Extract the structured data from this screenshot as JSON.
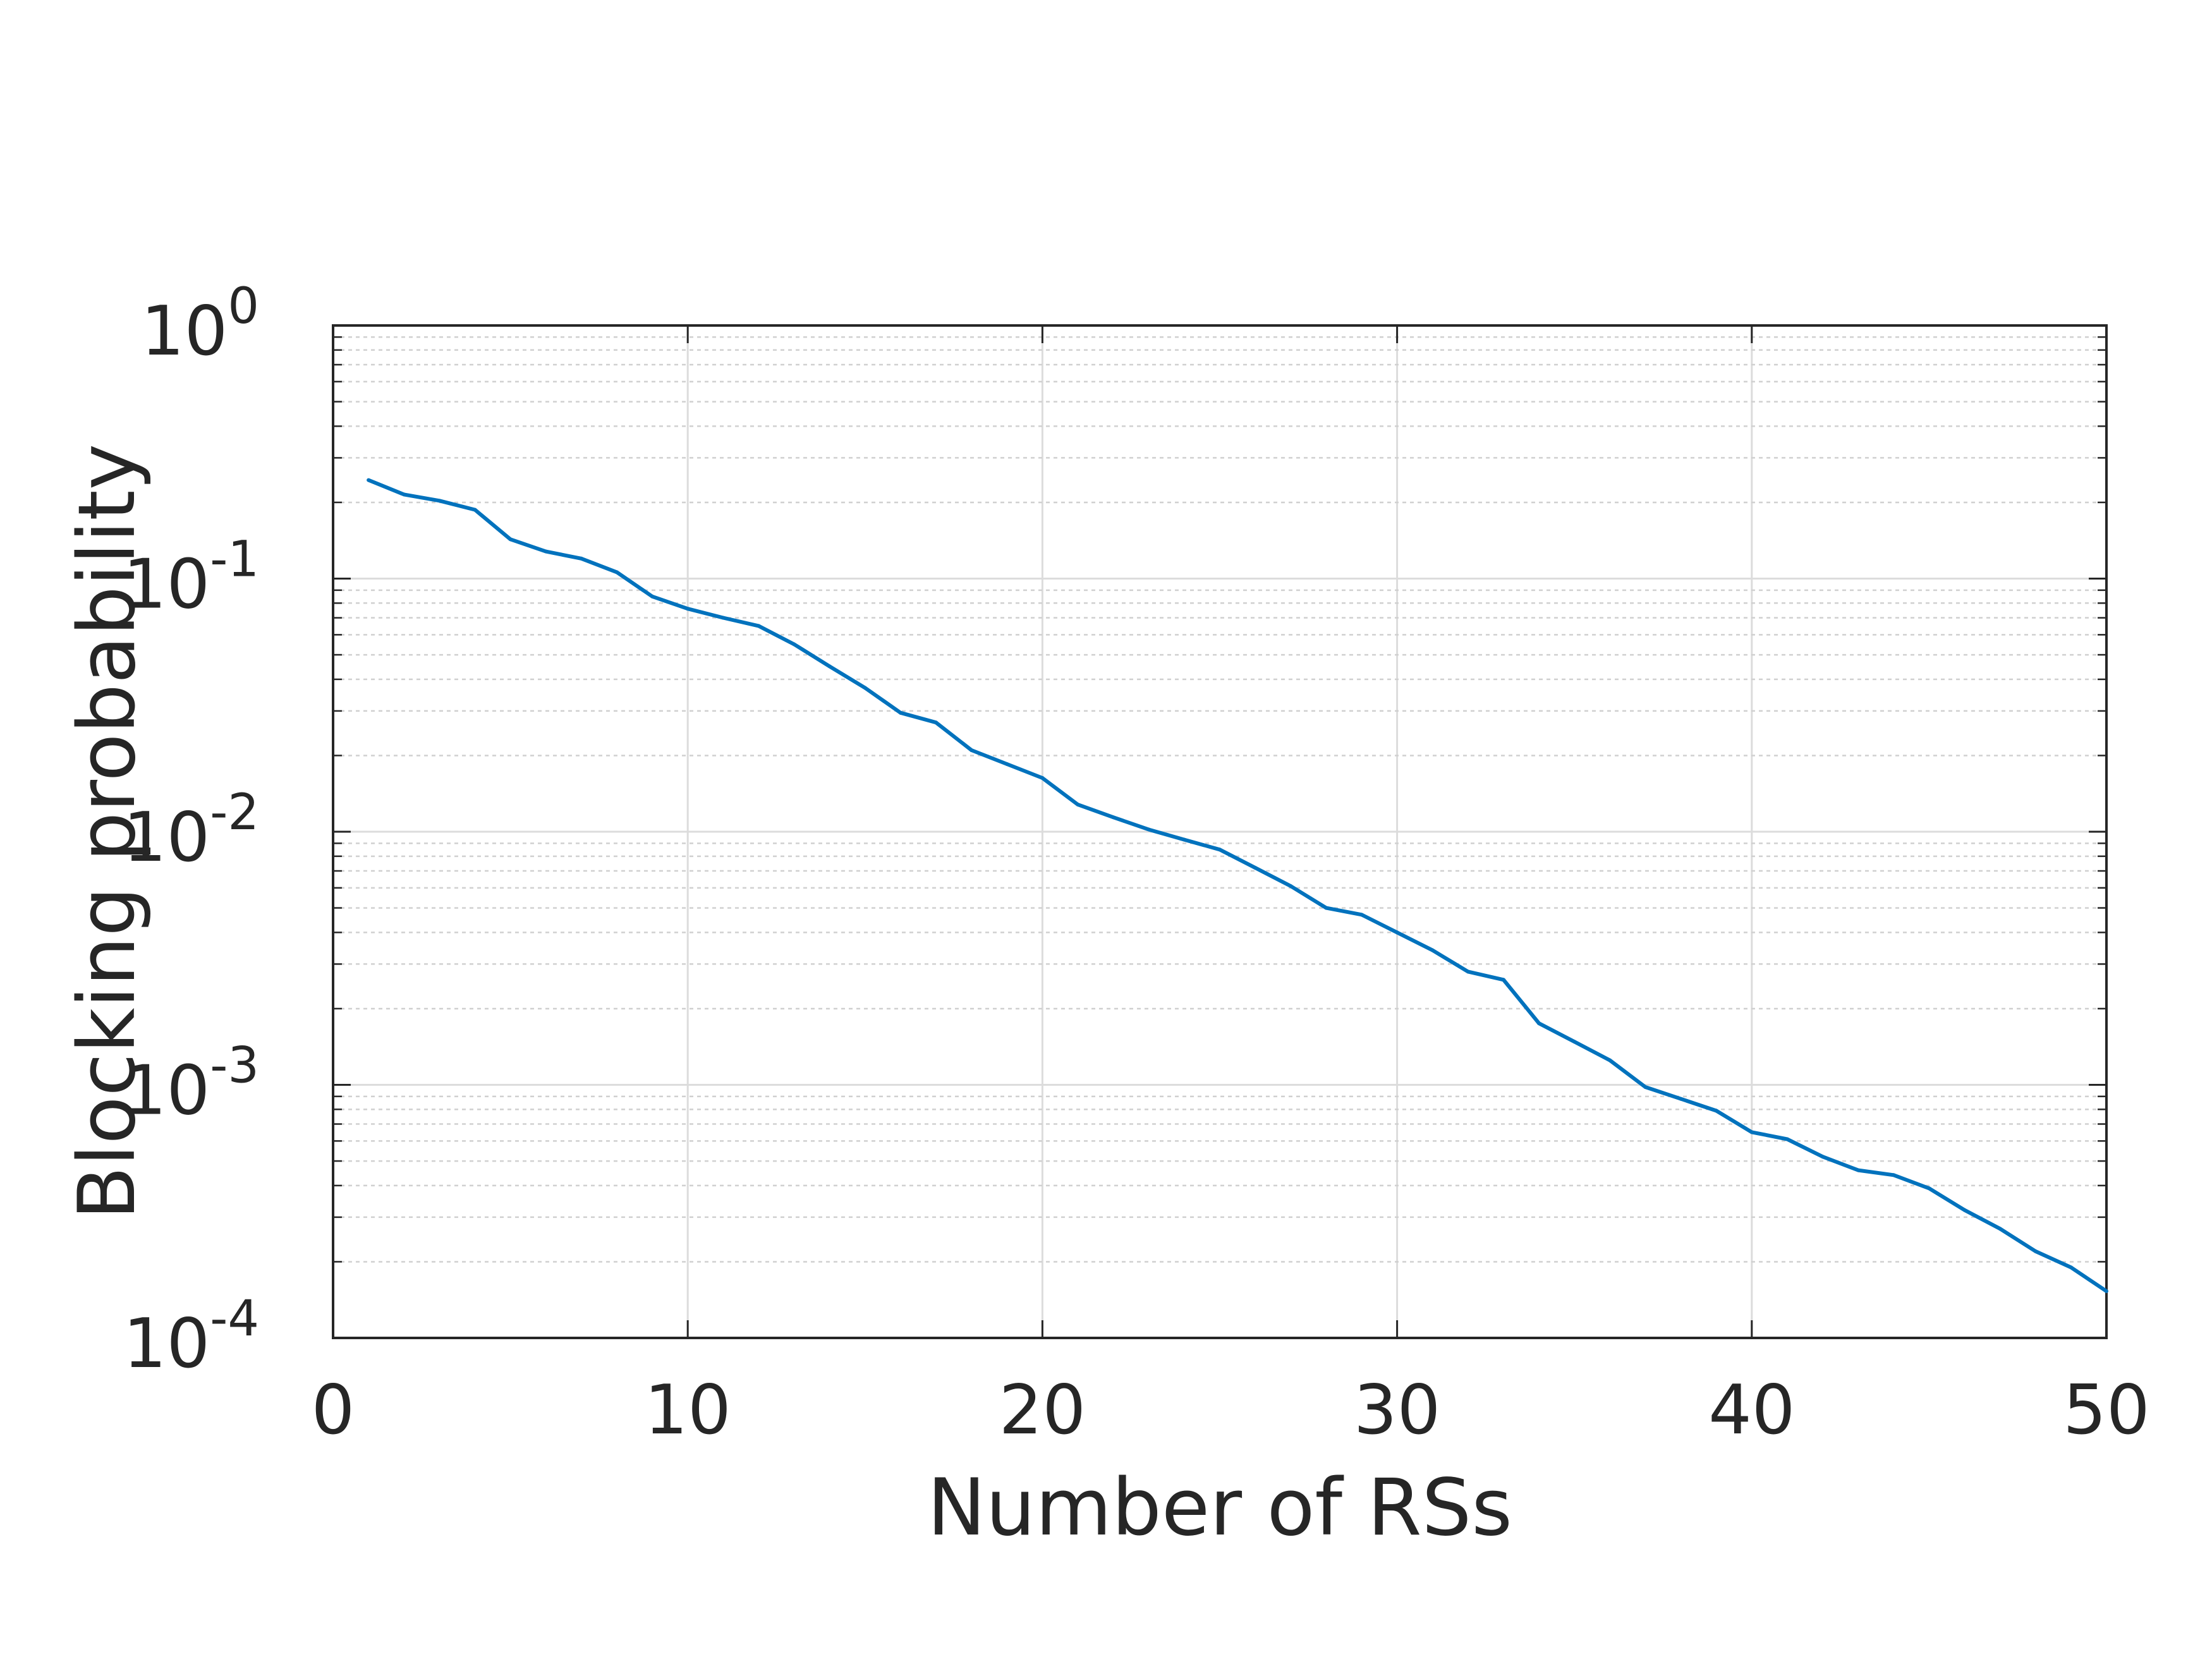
{
  "chart_data": {
    "type": "line",
    "title": "",
    "xlabel": "Number of RSs",
    "ylabel": "Blocking probability",
    "xlim": [
      0,
      50
    ],
    "ylim": [
      0.0001,
      1
    ],
    "yscale": "log",
    "grid": true,
    "x_ticks": [
      0,
      10,
      20,
      30,
      40,
      50
    ],
    "x_tick_labels": [
      "0",
      "10",
      "20",
      "30",
      "40",
      "50"
    ],
    "y_ticks": [
      1,
      0.1,
      0.01,
      0.001,
      0.0001
    ],
    "y_tick_labels": [
      {
        "base": "10",
        "exp": "0"
      },
      {
        "base": "10",
        "exp": "-1"
      },
      {
        "base": "10",
        "exp": "-2"
      },
      {
        "base": "10",
        "exp": "-3"
      },
      {
        "base": "10",
        "exp": "-4"
      }
    ],
    "series": [
      {
        "color": "#0072BD",
        "x": [
          1,
          2,
          3,
          4,
          5,
          6,
          7,
          8,
          9,
          10,
          11,
          12,
          13,
          14,
          15,
          16,
          17,
          18,
          19,
          20,
          21,
          22,
          23,
          24,
          25,
          26,
          27,
          28,
          29,
          30,
          31,
          32,
          33,
          34,
          35,
          36,
          37,
          38,
          39,
          40,
          41,
          42,
          43,
          44,
          45,
          46,
          47,
          48,
          49,
          50
        ],
        "y": [
          0.245,
          0.215,
          0.203,
          0.187,
          0.143,
          0.128,
          0.12,
          0.106,
          0.085,
          0.076,
          0.07,
          0.065,
          0.055,
          0.045,
          0.037,
          0.0295,
          0.027,
          0.021,
          0.0185,
          0.0163,
          0.0128,
          0.0114,
          0.0102,
          0.0093,
          0.0085,
          0.0072,
          0.0061,
          0.005,
          0.0047,
          0.004,
          0.0034,
          0.0028,
          0.0026,
          0.00175,
          0.00148,
          0.00125,
          0.00098,
          0.00088,
          0.00079,
          0.00065,
          0.00061,
          0.00052,
          0.00046,
          0.00044,
          0.00039,
          0.00032,
          0.00027,
          0.00022,
          0.00019,
          0.000153
        ]
      }
    ]
  }
}
